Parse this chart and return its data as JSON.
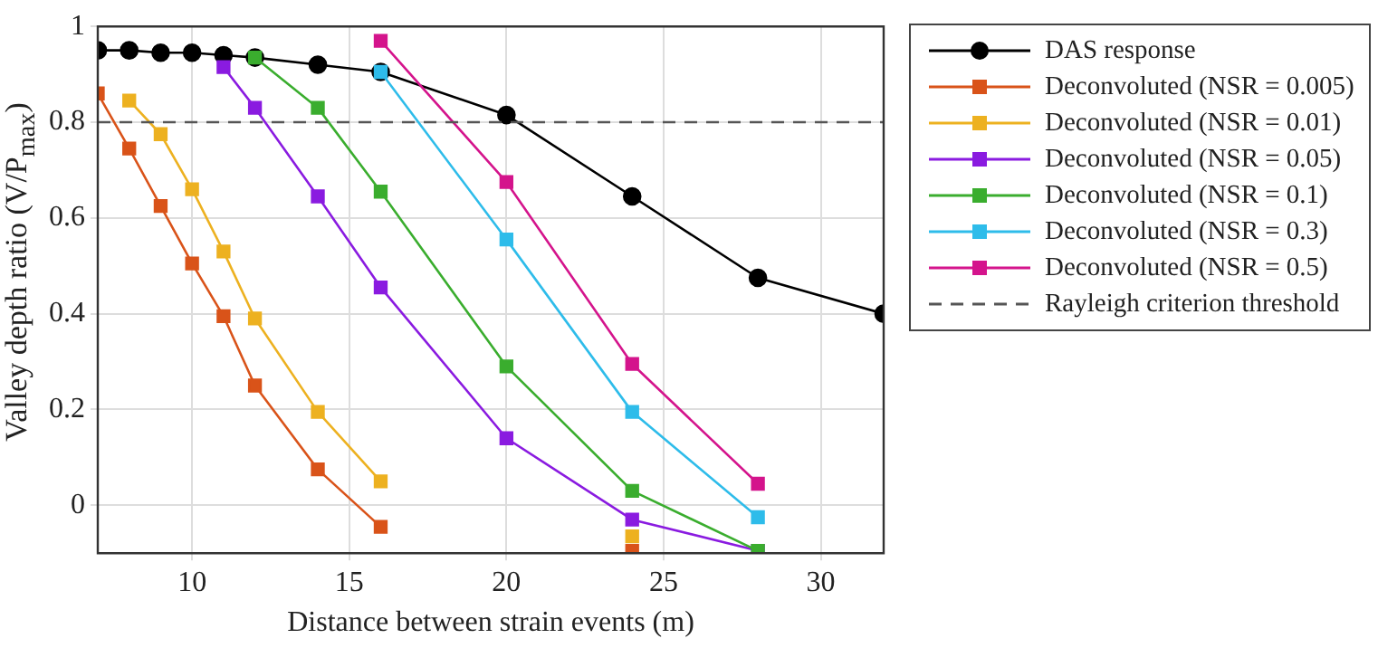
{
  "chart_data": {
    "type": "line",
    "xlabel": "Distance between strain events (m)",
    "ylabel": "Valley depth ratio (V/P$_{max}$)",
    "xlim": [
      7,
      32
    ],
    "xticks": [
      10,
      15,
      20,
      25,
      30
    ],
    "ylim": [
      -0.1,
      1
    ],
    "yticks": [
      0,
      0.2,
      0.4,
      0.6,
      0.8,
      1
    ],
    "grid": true,
    "legend": "top right",
    "line_style": "solid",
    "series": [
      {
        "name": "DAS response",
        "color": "#000000",
        "marker": "circle",
        "x": [
          7,
          8,
          9,
          10,
          11,
          12,
          14,
          16,
          20,
          24,
          28,
          32
        ],
        "values": [
          0.95,
          0.95,
          0.945,
          0.945,
          0.94,
          0.935,
          0.92,
          0.905,
          0.815,
          0.645,
          0.475,
          0.4
        ]
      },
      {
        "name": "Deconvoluted (NSR = 0.005)",
        "color": "#d95319",
        "marker": "square",
        "x": [
          7,
          8,
          9,
          10,
          11,
          12,
          14,
          16,
          20,
          24
        ],
        "values": [
          0.86,
          0.745,
          0.625,
          0.505,
          0.395,
          0.25,
          0.075,
          -0.045,
          null,
          -0.095
        ]
      },
      {
        "name": "Deconvoluted (NSR = 0.01)",
        "color": "#edb120",
        "marker": "square",
        "x": [
          8,
          9,
          10,
          11,
          12,
          14,
          16,
          20,
          24
        ],
        "values": [
          0.845,
          0.775,
          0.66,
          0.53,
          0.39,
          0.195,
          0.05,
          null,
          -0.065
        ]
      },
      {
        "name": "Deconvoluted (NSR = 0.05)",
        "color": "#8a1be0",
        "marker": "square",
        "x": [
          11,
          12,
          14,
          16,
          20,
          24,
          28
        ],
        "values": [
          0.915,
          0.83,
          0.645,
          0.455,
          0.14,
          -0.03,
          -0.095
        ]
      },
      {
        "name": "Deconvoluted (NSR = 0.1)",
        "color": "#3aad2e",
        "marker": "square",
        "x": [
          12,
          14,
          16,
          20,
          24,
          28
        ],
        "values": [
          0.935,
          0.83,
          0.655,
          0.29,
          0.03,
          -0.095
        ]
      },
      {
        "name": "Deconvoluted (NSR = 0.3)",
        "color": "#2ebcea",
        "marker": "square",
        "x": [
          16,
          20,
          24,
          28
        ],
        "values": [
          0.905,
          0.555,
          0.195,
          -0.025
        ]
      },
      {
        "name": "Deconvoluted (NSR = 0.5)",
        "color": "#d4148c",
        "marker": "square",
        "x": [
          16,
          20,
          24,
          28
        ],
        "values": [
          0.97,
          0.675,
          0.295,
          0.045
        ]
      }
    ],
    "ref_lines": [
      {
        "axis": "y",
        "value": 0.8,
        "label": "Rayleigh criterion threshold",
        "color": "#555555",
        "line_style": "dashed"
      }
    ]
  }
}
